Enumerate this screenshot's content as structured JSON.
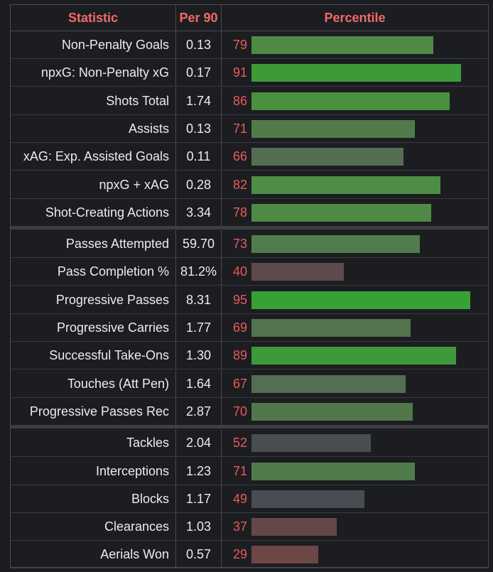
{
  "headers": {
    "statistic": "Statistic",
    "per90": "Per 90",
    "percentile": "Percentile"
  },
  "rows": [
    {
      "label": "Non-Penalty Goals",
      "per90": "0.13",
      "pct": 79,
      "color": "#4f8a45"
    },
    {
      "label": "npxG: Non-Penalty xG",
      "per90": "0.17",
      "pct": 91,
      "color": "#3c9b38"
    },
    {
      "label": "Shots Total",
      "per90": "1.74",
      "pct": 86,
      "color": "#4a913f"
    },
    {
      "label": "Assists",
      "per90": "0.13",
      "pct": 71,
      "color": "#507a4a"
    },
    {
      "label": "xAG: Exp. Assisted Goals",
      "per90": "0.11",
      "pct": 66,
      "color": "#556d51"
    },
    {
      "label": "npxG + xAG",
      "per90": "0.28",
      "pct": 82,
      "color": "#4d8d44"
    },
    {
      "label": "Shot-Creating Actions",
      "per90": "3.34",
      "pct": 78,
      "color": "#4f8946"
    },
    {
      "label": "Passes Attempted",
      "per90": "59.70",
      "pct": 73,
      "color": "#527c4c"
    },
    {
      "label": "Pass Completion %",
      "per90": "81.2%",
      "pct": 40,
      "color": "#5e4a4c"
    },
    {
      "label": "Progressive Passes",
      "per90": "8.31",
      "pct": 95,
      "color": "#37a135"
    },
    {
      "label": "Progressive Carries",
      "per90": "1.77",
      "pct": 69,
      "color": "#53744e"
    },
    {
      "label": "Successful Take-Ons",
      "per90": "1.30",
      "pct": 89,
      "color": "#3f993b"
    },
    {
      "label": "Touches (Att Pen)",
      "per90": "1.64",
      "pct": 67,
      "color": "#556d51"
    },
    {
      "label": "Progressive Passes Rec",
      "per90": "2.87",
      "pct": 70,
      "color": "#51774b"
    },
    {
      "label": "Tackles",
      "per90": "2.04",
      "pct": 52,
      "color": "#4a4d52"
    },
    {
      "label": "Interceptions",
      "per90": "1.23",
      "pct": 71,
      "color": "#507a4a"
    },
    {
      "label": "Blocks",
      "per90": "1.17",
      "pct": 49,
      "color": "#494c52"
    },
    {
      "label": "Clearances",
      "per90": "1.03",
      "pct": 37,
      "color": "#634848"
    },
    {
      "label": "Aerials Won",
      "per90": "0.57",
      "pct": 29,
      "color": "#6e4646"
    }
  ]
}
